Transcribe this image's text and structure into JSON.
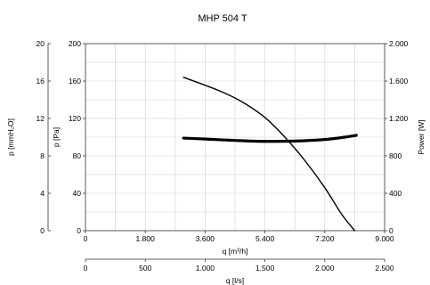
{
  "chart_data": {
    "type": "line",
    "title": "MHP 504 T",
    "x_axis": {
      "label": "q [m³/h]",
      "lim": [
        0,
        9000
      ],
      "ticks": [
        0,
        1800,
        3600,
        5400,
        7200,
        9000
      ],
      "tick_labels": [
        "0",
        "1.800",
        "3.600",
        "5.400",
        "7.200",
        "9.000"
      ]
    },
    "x2_axis": {
      "label": "q [l/s]",
      "lim": [
        0,
        2500
      ],
      "ticks": [
        0,
        500,
        1000,
        1500,
        2000,
        2500
      ],
      "tick_labels": [
        "0",
        "500",
        "1.000",
        "1.500",
        "2.000",
        "2.500"
      ]
    },
    "y_left_outer": {
      "label": "p [mmH₂O]",
      "lim": [
        0,
        20
      ],
      "ticks": [
        0,
        4,
        8,
        12,
        16,
        20
      ],
      "tick_labels": [
        "0",
        "4",
        "8",
        "12",
        "16",
        "20"
      ]
    },
    "y_left": {
      "label": "p [Pa]",
      "lim": [
        0,
        200
      ],
      "ticks": [
        0,
        40,
        80,
        120,
        160,
        200
      ],
      "tick_labels": [
        "0",
        "40",
        "80",
        "120",
        "160",
        "200"
      ]
    },
    "y_right": {
      "label": "Power [W]",
      "lim": [
        0,
        2000
      ],
      "ticks": [
        0,
        400,
        800,
        1200,
        1600,
        2000
      ],
      "tick_labels": [
        "0",
        "400",
        "800",
        "1.200",
        "1.600",
        "2.000"
      ]
    },
    "grid": true,
    "series": [
      {
        "axis": "y_left",
        "color": "#000000",
        "points": [
          [
            2950,
            164
          ],
          [
            4000,
            150
          ],
          [
            4700,
            138
          ],
          [
            5400,
            121
          ],
          [
            6000,
            100
          ],
          [
            6600,
            75
          ],
          [
            7200,
            46
          ],
          [
            7700,
            18
          ],
          [
            8100,
            0
          ]
        ]
      },
      {
        "axis": "y_right",
        "color": "#000000",
        "points": [
          [
            2950,
            990
          ],
          [
            3600,
            980
          ],
          [
            4500,
            965
          ],
          [
            5400,
            955
          ],
          [
            6300,
            958
          ],
          [
            7200,
            975
          ],
          [
            7800,
            1000
          ],
          [
            8150,
            1020
          ]
        ]
      }
    ]
  }
}
